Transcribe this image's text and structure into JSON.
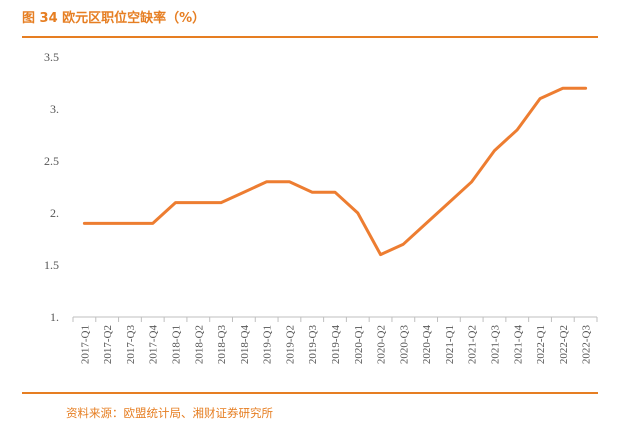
{
  "header": {
    "title": "图 34 欧元区职位空缺率（%）"
  },
  "footer": {
    "source": "资料来源：欧盟统计局、湘财证券研究所"
  },
  "colors": {
    "accent": "#E67E22",
    "line": "#ED7D31",
    "axis": "#BFBFBF",
    "text": "#555555"
  },
  "chart_data": {
    "type": "line",
    "title": "图 34 欧元区职位空缺率（%）",
    "xlabel": "",
    "ylabel": "",
    "ylim": [
      1,
      3.5
    ],
    "yticks": [
      "1.",
      "1.5",
      "2.",
      "2.5",
      "3.",
      "3.5"
    ],
    "grid": false,
    "categories": [
      "2017-Q1",
      "2017-Q2",
      "2017-Q3",
      "2017-Q4",
      "2018-Q1",
      "2018-Q2",
      "2018-Q3",
      "2018-Q4",
      "2019-Q1",
      "2019-Q2",
      "2019-Q3",
      "2019-Q4",
      "2020-Q1",
      "2020-Q2",
      "2020-Q3",
      "2020-Q4",
      "2021-Q1",
      "2021-Q2",
      "2021-Q3",
      "2021-Q4",
      "2022-Q1",
      "2022-Q2",
      "2022-Q3"
    ],
    "series": [
      {
        "values": [
          1.9,
          1.9,
          1.9,
          1.9,
          2.1,
          2.1,
          2.1,
          2.2,
          2.3,
          2.3,
          2.2,
          2.2,
          2.0,
          1.6,
          1.7,
          1.9,
          2.1,
          2.3,
          2.6,
          2.8,
          3.1,
          3.2,
          3.2
        ]
      }
    ]
  }
}
